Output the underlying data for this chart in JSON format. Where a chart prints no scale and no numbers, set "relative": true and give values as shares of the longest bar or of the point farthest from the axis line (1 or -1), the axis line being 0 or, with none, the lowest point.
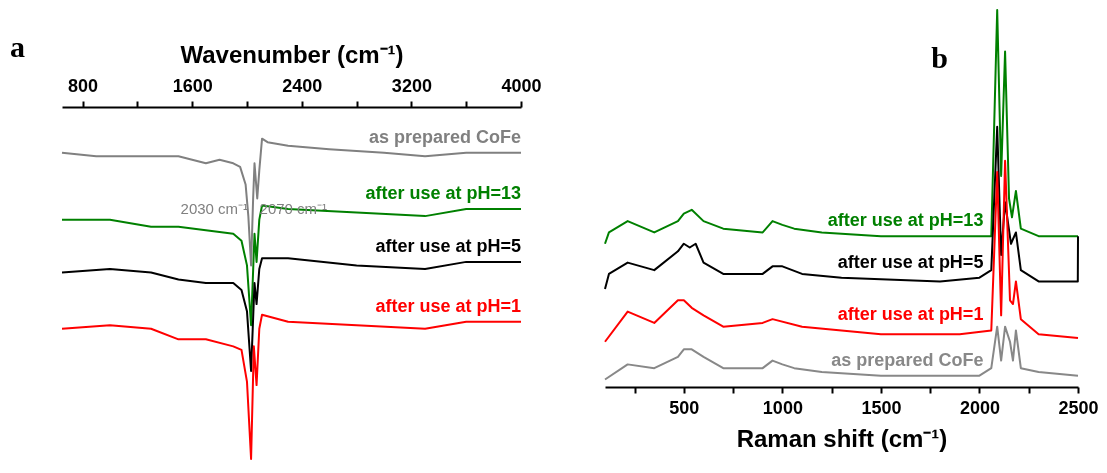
{
  "chart_data": [
    {
      "type": "line",
      "title": "a",
      "xlabel": "Wavenumber (cm⁻¹)",
      "xlim": [
        650,
        4000
      ],
      "xticks": [
        800,
        {
          "value": 1200,
          "label": null
        },
        1600,
        {
          "value": 2000,
          "label": null
        },
        2400,
        {
          "value": 2800,
          "label": null
        },
        3200,
        {
          "value": 3600,
          "label": null
        },
        4000
      ],
      "relative": true,
      "grid": false,
      "annotations": [
        {
          "text": "2030 cm⁻¹",
          "x": 2030,
          "y": -0.29
        },
        {
          "text": "2070 cm⁻¹",
          "x": 2070,
          "y": -0.29
        }
      ],
      "series": [
        {
          "name": "as prepared CoFe",
          "color": "#808080",
          "x": [
            650,
            900,
            1200,
            1500,
            1600,
            1700,
            1800,
            1900,
            1950,
            1990,
            2010,
            2030,
            2045,
            2055,
            2065,
            2075,
            2090,
            2110,
            2150,
            2300,
            2600,
            3000,
            3300,
            3600,
            4000
          ],
          "values": [
            -0.13,
            -0.14,
            -0.14,
            -0.14,
            -0.15,
            -0.16,
            -0.15,
            -0.16,
            -0.17,
            -0.22,
            -0.31,
            -0.45,
            -0.26,
            -0.16,
            -0.21,
            -0.26,
            -0.18,
            -0.09,
            -0.1,
            -0.11,
            -0.12,
            -0.13,
            -0.14,
            -0.13,
            -0.13
          ]
        },
        {
          "name": "after use at pH=13",
          "color": "#008000",
          "x": [
            650,
            1000,
            1300,
            1500,
            1700,
            1900,
            1960,
            2000,
            2030,
            2055,
            2070,
            2090,
            2110,
            2300,
            2800,
            3300,
            3600,
            4000
          ],
          "values": [
            -0.32,
            -0.32,
            -0.34,
            -0.34,
            -0.35,
            -0.36,
            -0.38,
            -0.45,
            -0.62,
            -0.36,
            -0.44,
            -0.32,
            -0.28,
            -0.29,
            -0.3,
            -0.31,
            -0.29,
            -0.29
          ]
        },
        {
          "name": "after use at pH=5",
          "color": "#000000",
          "x": [
            650,
            1000,
            1300,
            1500,
            1700,
            1900,
            1960,
            2000,
            2030,
            2055,
            2070,
            2090,
            2110,
            2300,
            2800,
            3300,
            3600,
            4000
          ],
          "values": [
            -0.47,
            -0.46,
            -0.47,
            -0.49,
            -0.5,
            -0.5,
            -0.52,
            -0.58,
            -0.75,
            -0.5,
            -0.56,
            -0.46,
            -0.43,
            -0.43,
            -0.45,
            -0.46,
            -0.44,
            -0.44
          ]
        },
        {
          "name": "after use at pH=1",
          "color": "#ff0000",
          "x": [
            650,
            1000,
            1300,
            1500,
            1700,
            1900,
            1960,
            2000,
            2030,
            2050,
            2070,
            2090,
            2110,
            2300,
            2800,
            3300,
            3600,
            4000
          ],
          "values": [
            -0.63,
            -0.62,
            -0.63,
            -0.66,
            -0.66,
            -0.68,
            -0.69,
            -0.78,
            -1,
            -0.68,
            -0.79,
            -0.63,
            -0.59,
            -0.61,
            -0.62,
            -0.63,
            -0.61,
            -0.61
          ]
        }
      ]
    },
    {
      "type": "line",
      "title": "b",
      "xlabel": "Raman shift (cm⁻¹)",
      "xlim": [
        100,
        2500
      ],
      "xticks": [
        {
          "value": 250,
          "label": null
        },
        500,
        {
          "value": 750,
          "label": null
        },
        1000,
        {
          "value": 1250,
          "label": null
        },
        1500,
        {
          "value": 1750,
          "label": null
        },
        2000,
        {
          "value": 2250,
          "label": null
        },
        2500
      ],
      "relative": true,
      "grid": false,
      "series": [
        {
          "name": "after use at pH=13",
          "color": "#008000",
          "x": [
            100,
            120,
            215,
            350,
            470,
            500,
            540,
            600,
            700,
            900,
            950,
            1000,
            1060,
            1200,
            1500,
            2000,
            2060,
            2090,
            2110,
            2130,
            2150,
            2165,
            2185,
            2210,
            2300,
            2500
          ],
          "values": [
            0.38,
            0.41,
            0.44,
            0.41,
            0.44,
            0.46,
            0.47,
            0.44,
            0.42,
            0.41,
            0.44,
            0.43,
            0.42,
            0.41,
            0.4,
            0.4,
            0.4,
            1.0,
            0.56,
            0.89,
            0.5,
            0.45,
            0.52,
            0.42,
            0.4,
            0.4
          ]
        },
        {
          "name": "after use at pH=5",
          "color": "#000000",
          "x": [
            100,
            120,
            215,
            350,
            470,
            500,
            530,
            560,
            600,
            700,
            900,
            950,
            1000,
            1100,
            1300,
            1800,
            2000,
            2060,
            2090,
            2110,
            2130,
            2160,
            2185,
            2210,
            2300,
            2499,
            2500
          ],
          "values": [
            0.26,
            0.3,
            0.33,
            0.31,
            0.36,
            0.38,
            0.37,
            0.38,
            0.33,
            0.3,
            0.3,
            0.32,
            0.32,
            0.3,
            0.29,
            0.28,
            0.29,
            0.31,
            0.69,
            0.35,
            0.49,
            0.38,
            0.41,
            0.31,
            0.28,
            0.28,
            0.4
          ]
        },
        {
          "name": "after use at pH=1",
          "color": "#ff0000",
          "x": [
            100,
            215,
            350,
            470,
            500,
            540,
            600,
            700,
            900,
            950,
            1100,
            1300,
            1500,
            1900,
            2060,
            2090,
            2110,
            2130,
            2155,
            2170,
            2185,
            2210,
            2300,
            2500
          ],
          "values": [
            0.12,
            0.2,
            0.17,
            0.23,
            0.23,
            0.21,
            0.19,
            0.16,
            0.17,
            0.18,
            0.16,
            0.15,
            0.14,
            0.14,
            0.15,
            0.57,
            0.19,
            0.6,
            0.23,
            0.22,
            0.28,
            0.18,
            0.14,
            0.13
          ]
        },
        {
          "name": "as prepared CoFe",
          "color": "#888888",
          "x": [
            100,
            215,
            350,
            470,
            500,
            540,
            600,
            700,
            900,
            950,
            1000,
            1060,
            1200,
            1500,
            2000,
            2060,
            2090,
            2110,
            2130,
            2155,
            2170,
            2185,
            2210,
            2300,
            2500
          ],
          "values": [
            0.02,
            0.06,
            0.05,
            0.08,
            0.1,
            0.1,
            0.08,
            0.05,
            0.05,
            0.07,
            0.06,
            0.05,
            0.04,
            0.03,
            0.03,
            0.05,
            0.16,
            0.07,
            0.16,
            0.12,
            0.07,
            0.15,
            0.05,
            0.04,
            0.03
          ]
        }
      ]
    }
  ]
}
